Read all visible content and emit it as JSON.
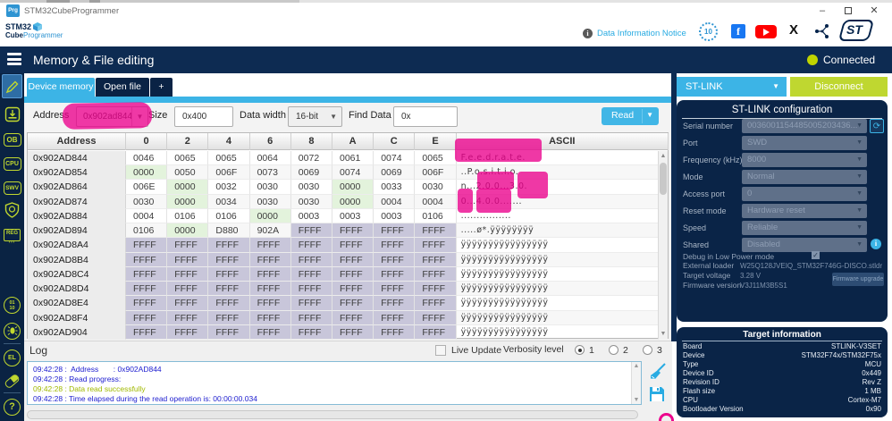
{
  "window": {
    "title": "STM32CubeProgrammer",
    "app_badge": "Prg",
    "minimize": "–",
    "maximize": "",
    "close": "✕"
  },
  "brand": {
    "stm32": "STM32",
    "cube": "Cube",
    "programmer": "Programmer",
    "st_logo": "ST"
  },
  "topbar": {
    "notice": "Data Information Notice",
    "badge": "10"
  },
  "header": {
    "title": "Memory & File editing",
    "status": "Connected"
  },
  "sidebar": {
    "ob": "OB",
    "cpu": "CPU",
    "swv": "SWV",
    "reg": "REG",
    "bin1": "01",
    "bin2": "10",
    "el": "EL",
    "help": "?"
  },
  "tabs": {
    "device_memory": "Device memory",
    "open_file": "Open file",
    "add": "+"
  },
  "toolbar": {
    "address_label": "Address",
    "address_value": "0x902ad844",
    "size_label": "Size",
    "size_value": "0x400",
    "data_width_label": "Data width",
    "data_width_value": "16-bit",
    "find_label": "Find Data",
    "find_value": "0x",
    "read_label": "Read"
  },
  "table": {
    "headers": [
      "Address",
      "0",
      "2",
      "4",
      "6",
      "8",
      "A",
      "C",
      "E",
      "ASCII"
    ],
    "rows": [
      {
        "address": "0x902AD844",
        "cells": [
          "0046",
          "0065",
          "0065",
          "0064",
          "0072",
          "0061",
          "0074",
          "0065"
        ],
        "ascii": "F.e.e.d.r.a.t.e."
      },
      {
        "address": "0x902AD854",
        "cells": [
          "0000",
          "0050",
          "006F",
          "0073",
          "0069",
          "0074",
          "0069",
          "006F"
        ],
        "ascii": "..P.o.s.i.t.i.o."
      },
      {
        "address": "0x902AD864",
        "cells": [
          "006E",
          "0000",
          "0032",
          "0030",
          "0030",
          "0000",
          "0033",
          "0030"
        ],
        "ascii": "n...2.0.0...3.0."
      },
      {
        "address": "0x902AD874",
        "cells": [
          "0030",
          "0000",
          "0034",
          "0030",
          "0030",
          "0000",
          "0004",
          "0004"
        ],
        "ascii": "0...4.0.0......."
      },
      {
        "address": "0x902AD884",
        "cells": [
          "0004",
          "0106",
          "0106",
          "0000",
          "0003",
          "0003",
          "0003",
          "0106"
        ],
        "ascii": "................"
      },
      {
        "address": "0x902AD894",
        "cells": [
          "0106",
          "0000",
          "D880",
          "902A",
          "FFFF",
          "FFFF",
          "FFFF",
          "FFFF"
        ],
        "ascii": ".....ø*.ÿÿÿÿÿÿÿÿ"
      },
      {
        "address": "0x902AD8A4",
        "cells": [
          "FFFF",
          "FFFF",
          "FFFF",
          "FFFF",
          "FFFF",
          "FFFF",
          "FFFF",
          "FFFF"
        ],
        "ascii": "ÿÿÿÿÿÿÿÿÿÿÿÿÿÿÿÿ"
      },
      {
        "address": "0x902AD8B4",
        "cells": [
          "FFFF",
          "FFFF",
          "FFFF",
          "FFFF",
          "FFFF",
          "FFFF",
          "FFFF",
          "FFFF"
        ],
        "ascii": "ÿÿÿÿÿÿÿÿÿÿÿÿÿÿÿÿ"
      },
      {
        "address": "0x902AD8C4",
        "cells": [
          "FFFF",
          "FFFF",
          "FFFF",
          "FFFF",
          "FFFF",
          "FFFF",
          "FFFF",
          "FFFF"
        ],
        "ascii": "ÿÿÿÿÿÿÿÿÿÿÿÿÿÿÿÿ"
      },
      {
        "address": "0x902AD8D4",
        "cells": [
          "FFFF",
          "FFFF",
          "FFFF",
          "FFFF",
          "FFFF",
          "FFFF",
          "FFFF",
          "FFFF"
        ],
        "ascii": "ÿÿÿÿÿÿÿÿÿÿÿÿÿÿÿÿ"
      },
      {
        "address": "0x902AD8E4",
        "cells": [
          "FFFF",
          "FFFF",
          "FFFF",
          "FFFF",
          "FFFF",
          "FFFF",
          "FFFF",
          "FFFF"
        ],
        "ascii": "ÿÿÿÿÿÿÿÿÿÿÿÿÿÿÿÿ"
      },
      {
        "address": "0x902AD8F4",
        "cells": [
          "FFFF",
          "FFFF",
          "FFFF",
          "FFFF",
          "FFFF",
          "FFFF",
          "FFFF",
          "FFFF"
        ],
        "ascii": "ÿÿÿÿÿÿÿÿÿÿÿÿÿÿÿÿ"
      },
      {
        "address": "0x902AD904",
        "cells": [
          "FFFF",
          "FFFF",
          "FFFF",
          "FFFF",
          "FFFF",
          "FFFF",
          "FFFF",
          "FFFF"
        ],
        "ascii": "ÿÿÿÿÿÿÿÿÿÿÿÿÿÿÿÿ"
      }
    ]
  },
  "log": {
    "title": "Log",
    "live_update": "Live Update",
    "verbosity_label": "Verbosity level",
    "levels": [
      "1",
      "2",
      "3"
    ],
    "selected_level": "1",
    "entries": [
      {
        "text": "09:42:28 :  Address       : 0x902AD844",
        "color": "blue"
      },
      {
        "text": "09:42:28 : Read progress:",
        "color": "blue"
      },
      {
        "text": "09:42:28 : Data read successfully",
        "color": "green"
      },
      {
        "text": "09:42:28 : Time elapsed during the read operation is: 00:00:00.034",
        "color": "blue"
      }
    ]
  },
  "stlink": {
    "selector": "ST-LINK",
    "disconnect": "Disconnect",
    "panel_title": "ST-LINK configuration",
    "fields": [
      {
        "label": "Serial number",
        "value": "0036001154485005203436..."
      },
      {
        "label": "Port",
        "value": "SWD"
      },
      {
        "label": "Frequency (kHz)",
        "value": "8000"
      },
      {
        "label": "Mode",
        "value": "Normal"
      },
      {
        "label": "Access port",
        "value": "0"
      },
      {
        "label": "Reset mode",
        "value": "Hardware reset"
      },
      {
        "label": "Speed",
        "value": "Reliable"
      },
      {
        "label": "Shared",
        "value": "Disabled"
      }
    ],
    "debug_low_power": "Debug in Low Power mode",
    "external_loader_label": "External loader",
    "external_loader": "W25Q128JVEIQ_STM32F746G-DISCO.stldr",
    "target_voltage_label": "Target voltage",
    "target_voltage": "3.28 V",
    "firmware_version_label": "Firmware version",
    "firmware_version": "V3J11M3B5S1",
    "firmware_upgrade": "Firmware upgrade"
  },
  "target_info": {
    "title": "Target information",
    "rows": [
      {
        "label": "Board",
        "value": "STLINK-V3SET"
      },
      {
        "label": "Device",
        "value": "STM32F74x/STM32F75x"
      },
      {
        "label": "Type",
        "value": "MCU"
      },
      {
        "label": "Device ID",
        "value": "0x449"
      },
      {
        "label": "Revision ID",
        "value": "Rev Z"
      },
      {
        "label": "Flash size",
        "value": "1 MB"
      },
      {
        "label": "CPU",
        "value": "Cortex-M7"
      },
      {
        "label": "Bootloader Version",
        "value": "0x90"
      }
    ]
  },
  "colors": {
    "accent_blue": "#3cb4e6",
    "navy": "#0a2345",
    "green": "#bfd730",
    "pink": "#e6007e",
    "cell_green": "#e3f3dc",
    "cell_lavender": "#c8c6da"
  }
}
